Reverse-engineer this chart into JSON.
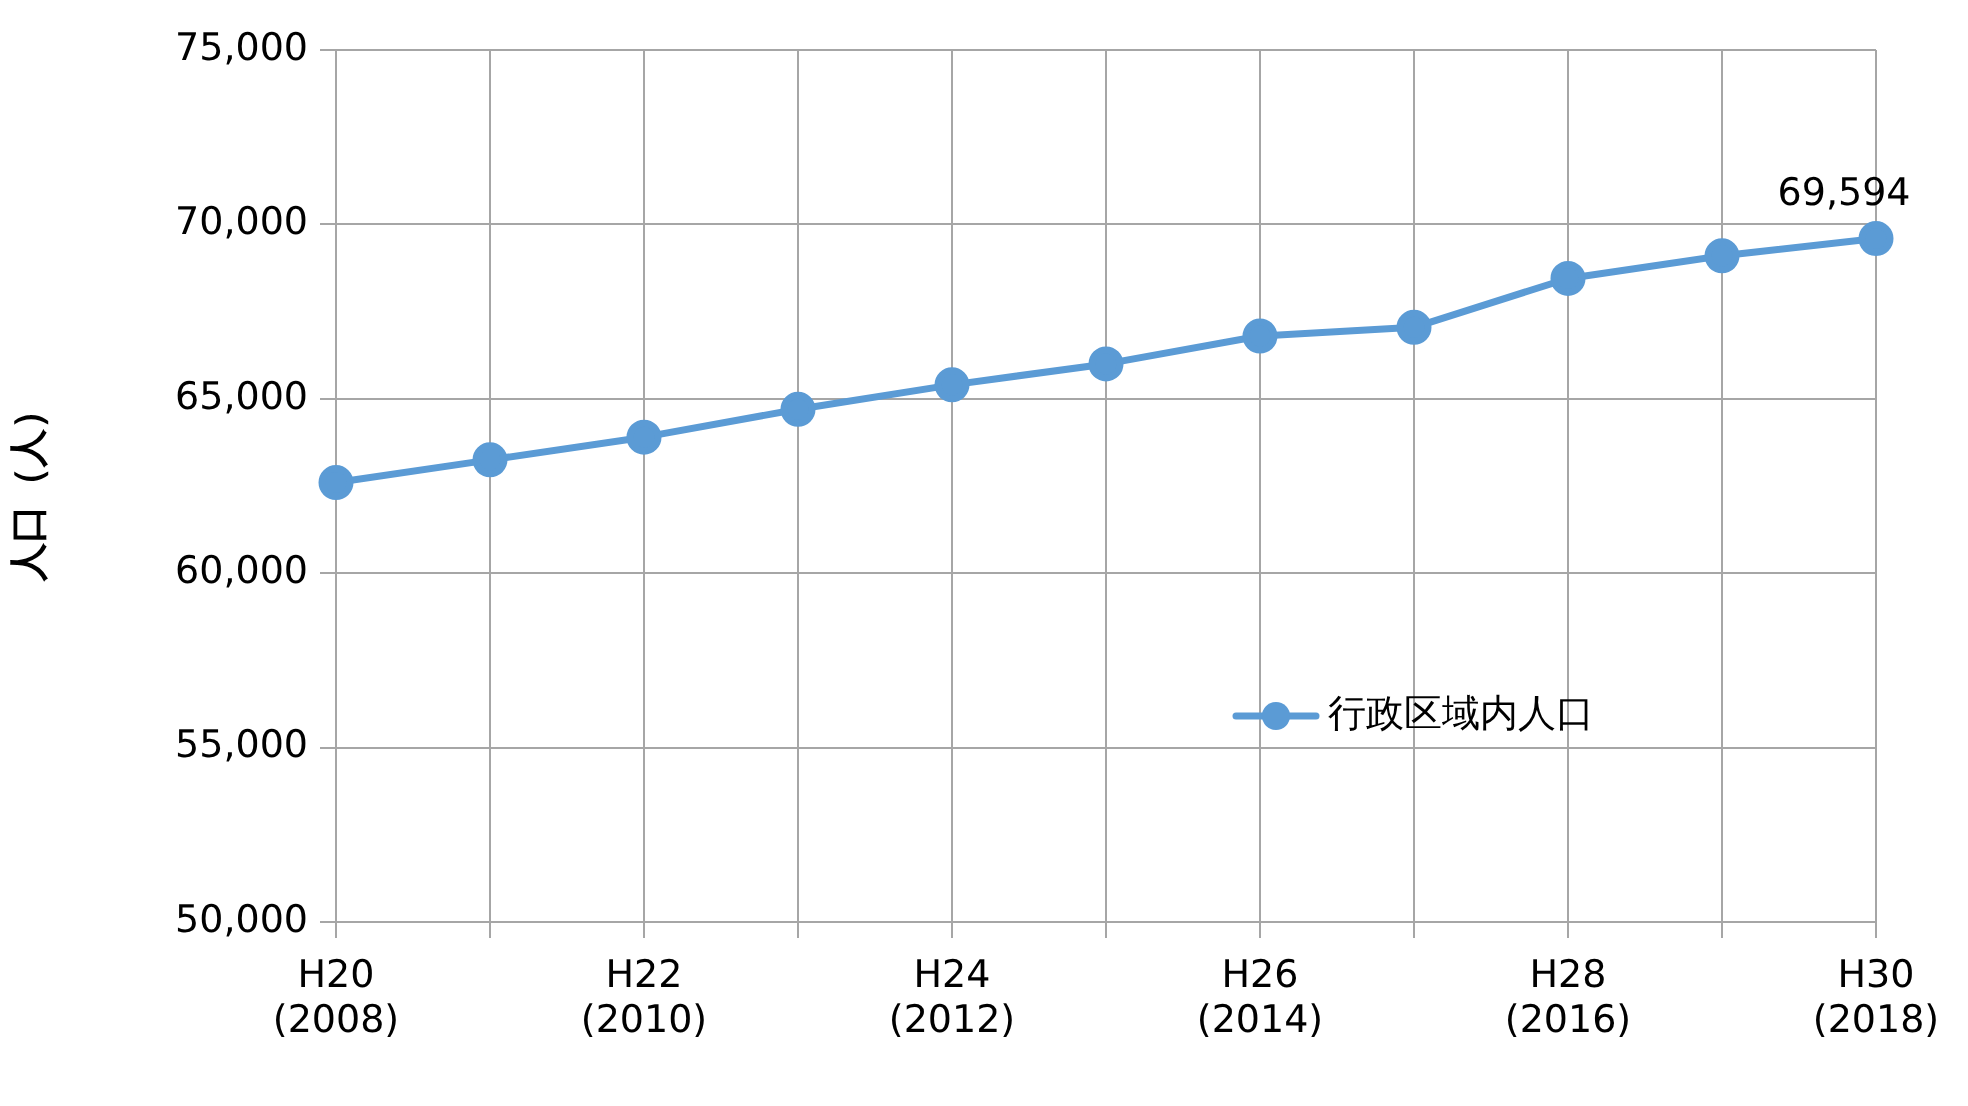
{
  "chart_data": {
    "type": "line",
    "ylabel": "人口（人）",
    "categories": [
      "H20\n(2008)",
      null,
      "H22\n(2010)",
      null,
      "H24\n(2012)",
      null,
      "H26\n(2014)",
      null,
      "H28\n(2016)",
      null,
      "H30\n(2018)"
    ],
    "series": [
      {
        "name": "行政区域内人口",
        "color": "#5b9bd5",
        "values": [
          62600,
          63250,
          63900,
          64700,
          65400,
          66000,
          66800,
          67050,
          68450,
          69100,
          69594
        ],
        "value_labels": [
          null,
          null,
          null,
          null,
          null,
          null,
          null,
          null,
          null,
          null,
          "69,594"
        ]
      }
    ],
    "ylim": [
      50000,
      75000
    ],
    "yticks": [
      {
        "value": 50000,
        "label": "50,000"
      },
      {
        "value": 55000,
        "label": "55,000"
      },
      {
        "value": 60000,
        "label": "60,000"
      },
      {
        "value": 65000,
        "label": "65,000"
      },
      {
        "value": 70000,
        "label": "70,000"
      },
      {
        "value": 75000,
        "label": "75,000"
      }
    ],
    "grid": true,
    "legend": "right",
    "marker": "circle",
    "line_style": "solid"
  }
}
